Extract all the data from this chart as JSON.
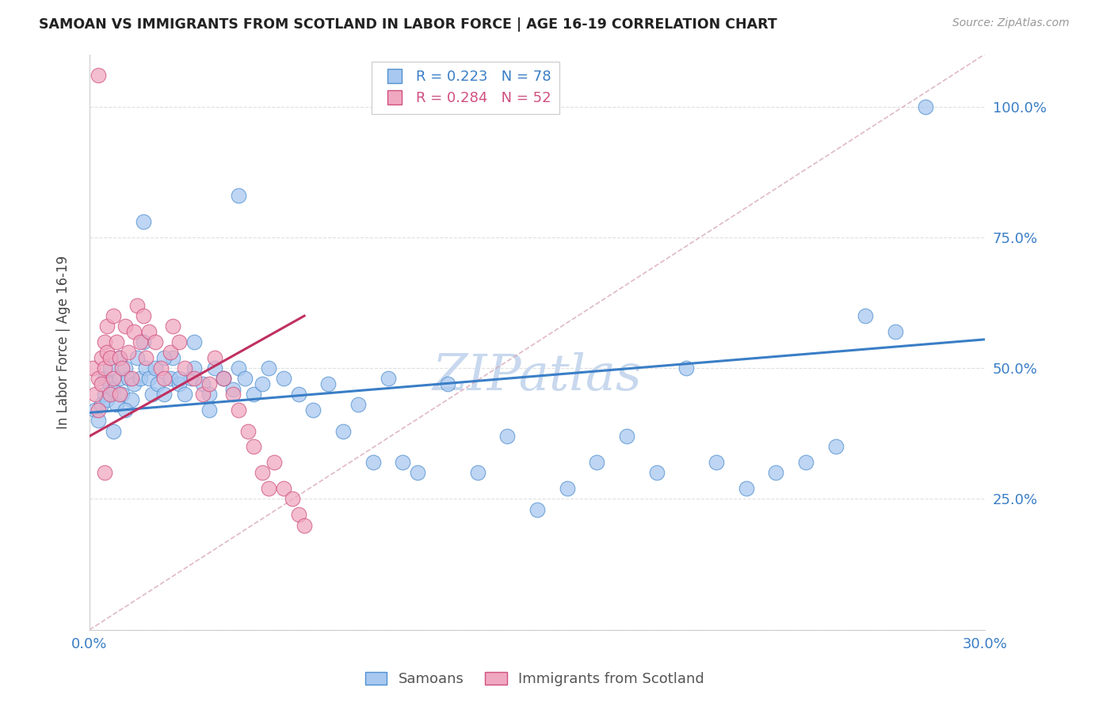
{
  "title": "SAMOAN VS IMMIGRANTS FROM SCOTLAND IN LABOR FORCE | AGE 16-19 CORRELATION CHART",
  "source_text": "Source: ZipAtlas.com",
  "ylabel": "In Labor Force | Age 16-19",
  "xlim": [
    0.0,
    0.3
  ],
  "ylim": [
    0.0,
    1.1
  ],
  "yticks": [
    0.0,
    0.25,
    0.5,
    0.75,
    1.0
  ],
  "xticks": [
    0.0,
    0.05,
    0.1,
    0.15,
    0.2,
    0.25,
    0.3
  ],
  "xtick_labels": [
    "0.0%",
    "",
    "",
    "",
    "",
    "",
    "30.0%"
  ],
  "ytick_labels_right": [
    "25.0%",
    "50.0%",
    "75.0%",
    "100.0%"
  ],
  "r_samoan": 0.223,
  "n_samoan": 78,
  "r_scotland": 0.284,
  "n_scotland": 52,
  "color_samoan_fill": "#A8C8F0",
  "color_samoan_edge": "#5090D0",
  "color_scotland_fill": "#F0A8C0",
  "color_scotland_edge": "#D05080",
  "color_trend_samoan": "#3A7EC6",
  "color_trend_scotland": "#C03060",
  "color_ref_line": "#E0A0B0",
  "watermark_color": "#C8D8EE",
  "axis_color": "#3A7EC6",
  "grid_color": "#DDDDDD",
  "title_color": "#222222",
  "source_color": "#999999",
  "legend_r_color_samoan": "#3A7EC6",
  "legend_r_color_scotland": "#D05080",
  "samoan_x": [
    0.002,
    0.003,
    0.004,
    0.005,
    0.005,
    0.006,
    0.007,
    0.007,
    0.008,
    0.009,
    0.01,
    0.01,
    0.011,
    0.012,
    0.013,
    0.014,
    0.015,
    0.016,
    0.017,
    0.018,
    0.019,
    0.02,
    0.021,
    0.022,
    0.023,
    0.025,
    0.027,
    0.028,
    0.03,
    0.032,
    0.034,
    0.035,
    0.038,
    0.04,
    0.042,
    0.045,
    0.048,
    0.05,
    0.052,
    0.055,
    0.058,
    0.06,
    0.065,
    0.07,
    0.075,
    0.08,
    0.085,
    0.09,
    0.095,
    0.1,
    0.105,
    0.11,
    0.12,
    0.13,
    0.14,
    0.15,
    0.16,
    0.17,
    0.18,
    0.19,
    0.2,
    0.21,
    0.22,
    0.23,
    0.24,
    0.25,
    0.26,
    0.27,
    0.28,
    0.008,
    0.012,
    0.018,
    0.025,
    0.03,
    0.035,
    0.04,
    0.045,
    0.05
  ],
  "samoan_y": [
    0.42,
    0.4,
    0.43,
    0.45,
    0.48,
    0.44,
    0.5,
    0.47,
    0.46,
    0.43,
    0.48,
    0.52,
    0.45,
    0.5,
    0.48,
    0.44,
    0.47,
    0.52,
    0.48,
    0.55,
    0.5,
    0.48,
    0.45,
    0.5,
    0.47,
    0.45,
    0.48,
    0.52,
    0.47,
    0.45,
    0.48,
    0.5,
    0.47,
    0.45,
    0.5,
    0.48,
    0.46,
    0.5,
    0.48,
    0.45,
    0.47,
    0.5,
    0.48,
    0.45,
    0.42,
    0.47,
    0.38,
    0.43,
    0.32,
    0.48,
    0.32,
    0.3,
    0.47,
    0.3,
    0.37,
    0.23,
    0.27,
    0.32,
    0.37,
    0.3,
    0.5,
    0.32,
    0.27,
    0.3,
    0.32,
    0.35,
    0.6,
    0.57,
    1.0,
    0.38,
    0.42,
    0.78,
    0.52,
    0.48,
    0.55,
    0.42,
    0.48,
    0.83
  ],
  "scotland_x": [
    0.001,
    0.002,
    0.003,
    0.003,
    0.004,
    0.004,
    0.005,
    0.005,
    0.006,
    0.006,
    0.007,
    0.007,
    0.008,
    0.008,
    0.009,
    0.01,
    0.01,
    0.011,
    0.012,
    0.013,
    0.014,
    0.015,
    0.016,
    0.017,
    0.018,
    0.019,
    0.02,
    0.022,
    0.024,
    0.025,
    0.027,
    0.028,
    0.03,
    0.032,
    0.035,
    0.038,
    0.04,
    0.042,
    0.045,
    0.048,
    0.05,
    0.053,
    0.055,
    0.058,
    0.06,
    0.062,
    0.065,
    0.068,
    0.07,
    0.072,
    0.003,
    0.005
  ],
  "scotland_y": [
    0.5,
    0.45,
    0.48,
    0.42,
    0.52,
    0.47,
    0.55,
    0.5,
    0.58,
    0.53,
    0.52,
    0.45,
    0.6,
    0.48,
    0.55,
    0.52,
    0.45,
    0.5,
    0.58,
    0.53,
    0.48,
    0.57,
    0.62,
    0.55,
    0.6,
    0.52,
    0.57,
    0.55,
    0.5,
    0.48,
    0.53,
    0.58,
    0.55,
    0.5,
    0.48,
    0.45,
    0.47,
    0.52,
    0.48,
    0.45,
    0.42,
    0.38,
    0.35,
    0.3,
    0.27,
    0.32,
    0.27,
    0.25,
    0.22,
    0.2,
    1.06,
    0.3
  ],
  "trend_samoan_x0": 0.0,
  "trend_samoan_y0": 0.415,
  "trend_samoan_x1": 0.3,
  "trend_samoan_y1": 0.555,
  "trend_scotland_x0": 0.0,
  "trend_scotland_y0": 0.37,
  "trend_scotland_x1": 0.072,
  "trend_scotland_y1": 0.6,
  "ref_line_x0": 0.0,
  "ref_line_y0": 0.0,
  "ref_line_x1": 0.3,
  "ref_line_y1": 1.1
}
